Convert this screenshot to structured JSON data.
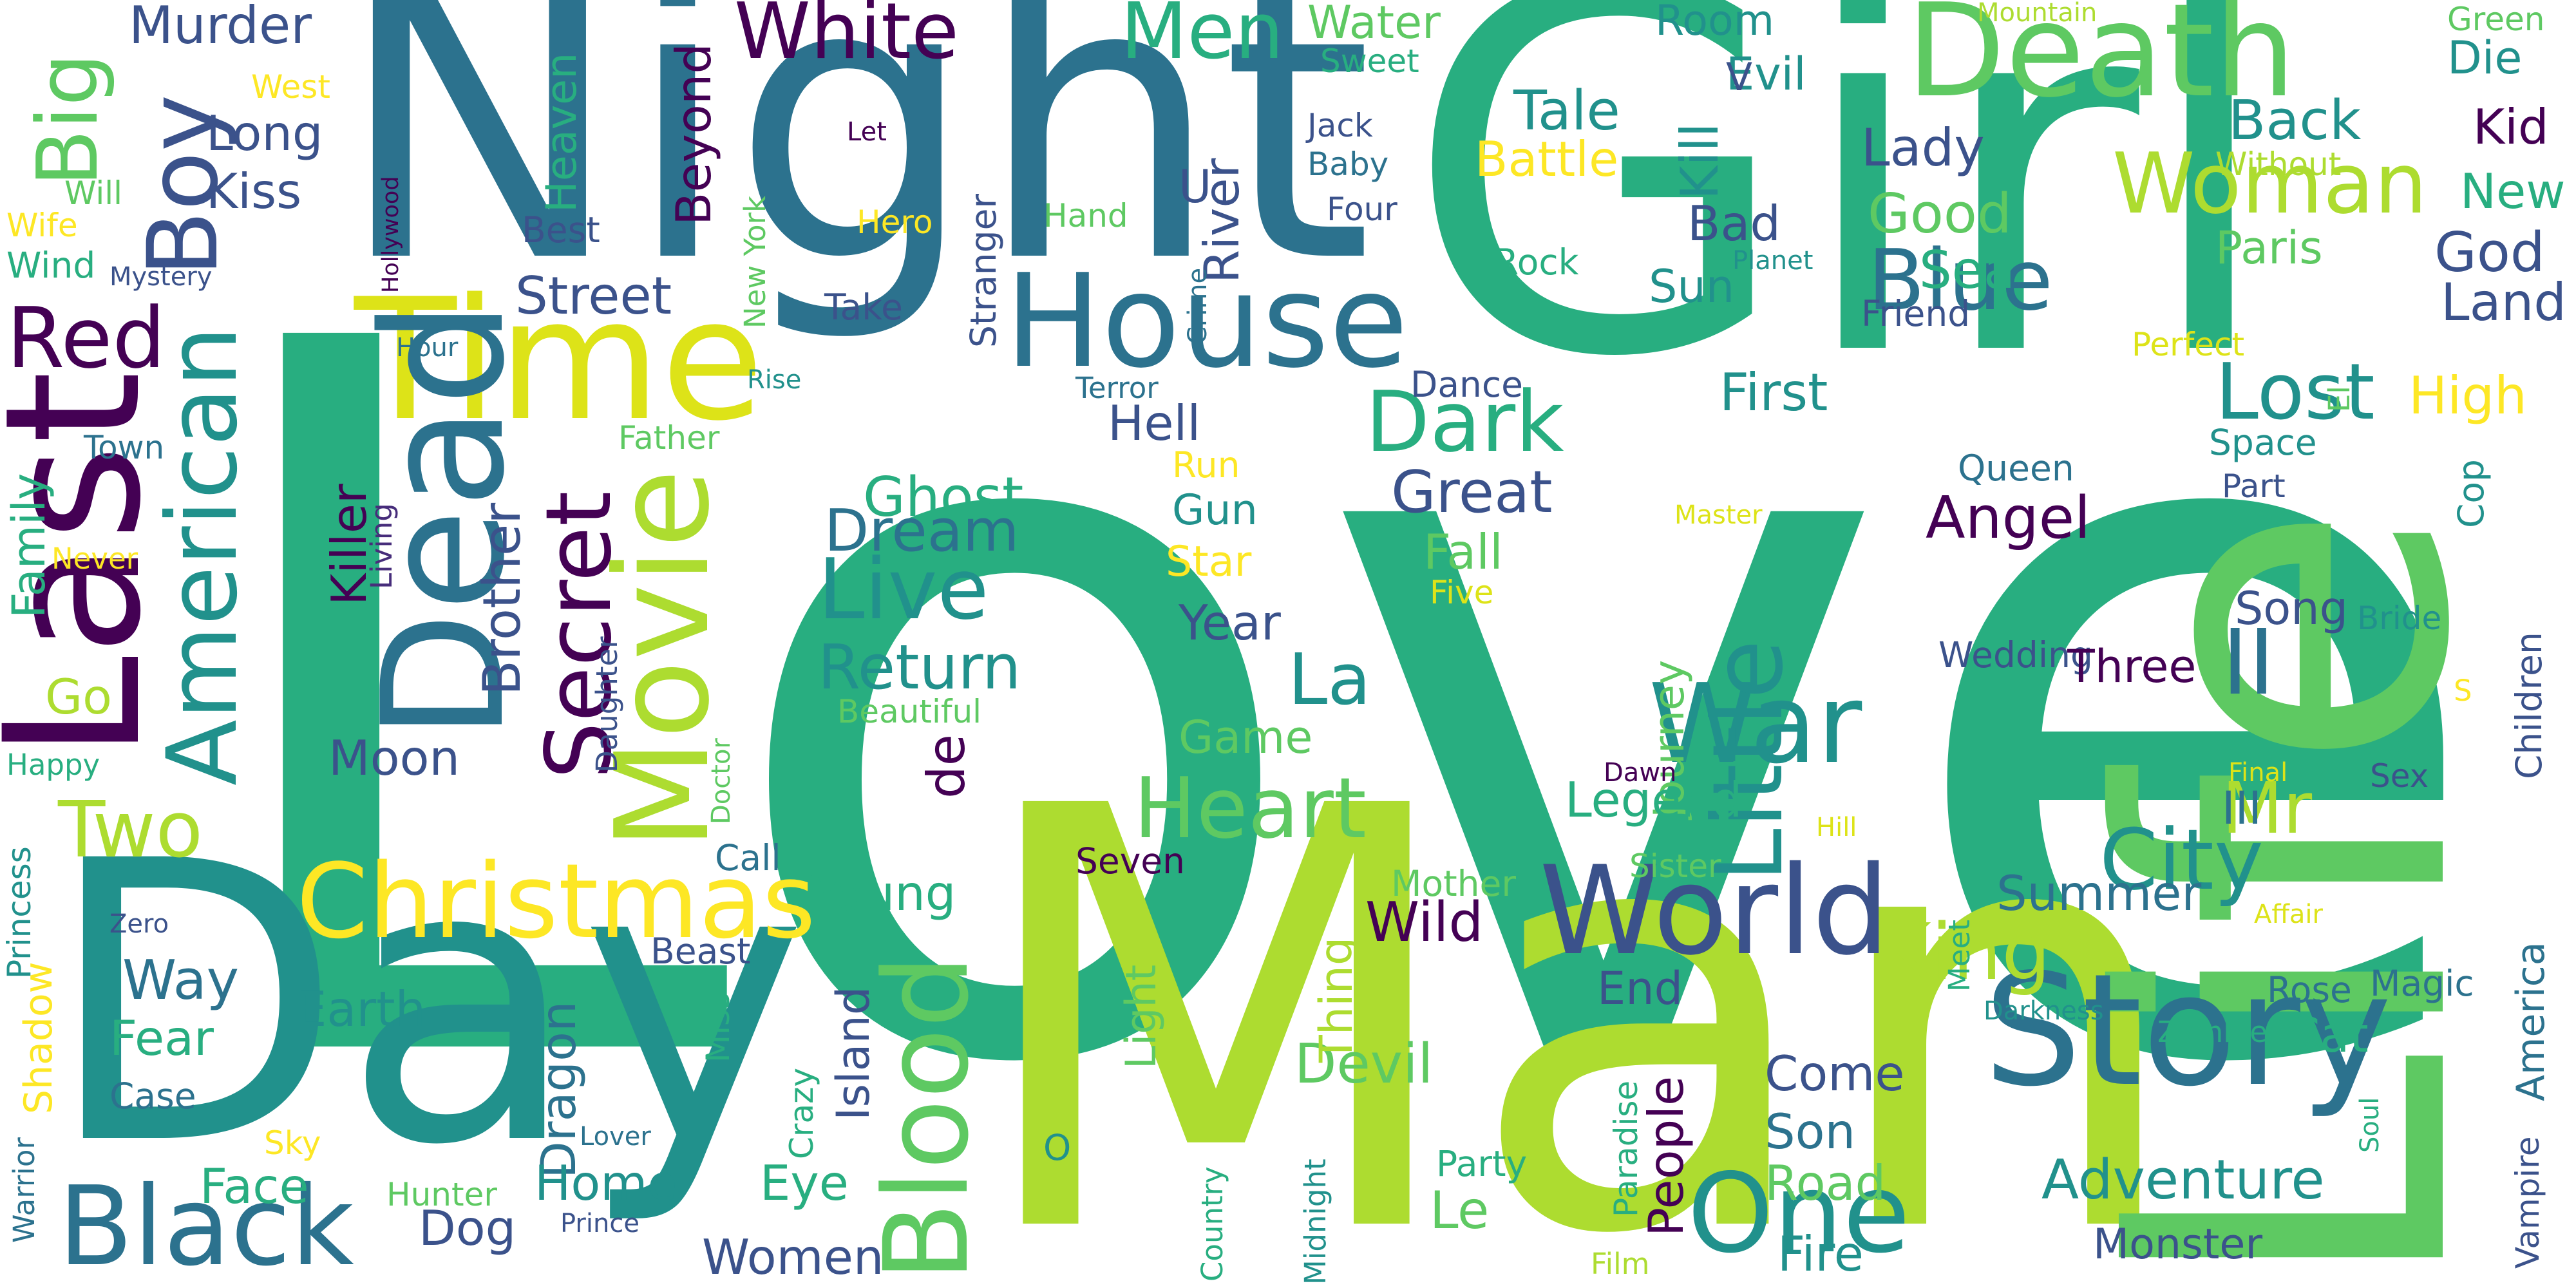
{
  "palette": {
    "background": "#ffffff",
    "purple": "#440154",
    "indigo": "#472d7b",
    "blue": "#3b528b",
    "steel": "#2c728e",
    "teal": "#21918c",
    "green": "#28ae80",
    "mint": "#5ec962",
    "lime": "#addc30",
    "yellow": "#fde725"
  },
  "words": {
    "love": "Love",
    "girl": "Girl",
    "man": "Man",
    "life": "Life",
    "night": "Night",
    "day": "Day",
    "time": "Time",
    "last": "Last",
    "dead": "Dead",
    "death": "Death",
    "house": "House",
    "movie": "Movie",
    "american": "American",
    "christmas": "Christmas",
    "world": "World",
    "story": "Story",
    "war": "War",
    "blood": "Blood",
    "black": "Black",
    "one": "One",
    "little": "Little",
    "woman": "Woman",
    "boy": "Boy",
    "white": "White",
    "men": "Men",
    "big": "Big",
    "red": "Red",
    "two": "Two",
    "secret": "Secret",
    "dark": "Dark",
    "blue": "Blue",
    "lost": "Lost",
    "city": "City",
    "king": "King",
    "heart": "Heart",
    "live": "Live",
    "ii": "II",
    "mr": "Mr",
    "la": "La",
    "angel": "Angel",
    "great": "Great",
    "return": "Return",
    "dream": "Dream",
    "ghost": "Ghost",
    "street": "Street",
    "brother": "Brother",
    "killer": "Killer",
    "murder": "Murder",
    "kiss": "Kiss",
    "long": "Long",
    "heaven": "Heaven",
    "beyond": "Beyond",
    "water": "Water",
    "sweet": "Sweet",
    "room": "Room",
    "evil": "Evil",
    "v": "V",
    "tale": "Tale",
    "battle": "Battle",
    "kill": "Kill",
    "lady": "Lady",
    "good": "Good",
    "bad": "Bad",
    "sea": "Sea",
    "sun": "Sun",
    "back": "Back",
    "without": "Without",
    "paris": "Paris",
    "god": "God",
    "land": "Land",
    "kid": "Kid",
    "new": "New",
    "die": "Die",
    "green": "Green",
    "mountain": "Mountain",
    "jack": "Jack",
    "baby": "Baby",
    "four": "Four",
    "u": "U",
    "river": "River",
    "rock": "Rock",
    "planet": "Planet",
    "friend": "Friend",
    "first": "First",
    "crime": "Crime",
    "stranger": "Stranger",
    "take": "Take",
    "hand": "Hand",
    "hero": "Hero",
    "let": "Let",
    "new_york": "New York",
    "best": "Best",
    "west": "West",
    "will": "Will",
    "wife": "Wife",
    "wind": "Wind",
    "mystery": "Mystery",
    "hollywood": "Hollywood",
    "hour": "Hour",
    "rise": "Rise",
    "town": "Town",
    "father": "Father",
    "family": "Family",
    "never": "Never",
    "living": "Living",
    "go": "Go",
    "moon": "Moon",
    "daughter": "Daughter",
    "happy": "Happy",
    "doctor": "Doctor",
    "terror": "Terror",
    "dance": "Dance",
    "hell": "Hell",
    "run": "Run",
    "gun": "Gun",
    "star": "Star",
    "year": "Year",
    "fall": "Fall",
    "five": "Five",
    "beautiful": "Beautiful",
    "game": "Game",
    "de": "de",
    "journey": "Journey",
    "legend": "Legend",
    "dawn": "Dawn",
    "perfect": "Perfect",
    "high": "High",
    "el": "El",
    "space": "Space",
    "part": "Part",
    "cop": "Cop",
    "queen": "Queen",
    "master": "Master",
    "song": "Song",
    "bride": "Bride",
    "children": "Children",
    "wedding": "Wedding",
    "three": "Three",
    "s": "S",
    "final": "Final",
    "sex": "Sex",
    "iii": "III",
    "hill": "Hill",
    "summer": "Summer",
    "affair": "Affair",
    "america": "America",
    "magic": "Magic",
    "rose": "Rose",
    "darkness": "Darkness",
    "zombie": "Zombie",
    "cat": "Cat",
    "meet": "Meet",
    "sister": "Sister",
    "end": "End",
    "people": "People",
    "come": "Come",
    "son": "Son",
    "road": "Road",
    "adventure": "Adventure",
    "soul": "Soul",
    "vampire": "Vampire",
    "monster": "Monster",
    "fire": "Fire",
    "film": "Film",
    "paradise": "Paradise",
    "party": "Party",
    "le": "Le",
    "devil": "Devil",
    "thing": "Thing",
    "mother": "Mother",
    "wild": "Wild",
    "midnight": "Midnight",
    "country": "Country",
    "o": "O",
    "seven": "Seven",
    "young": "Young",
    "call": "Call",
    "light": "Light",
    "crazy": "Crazy",
    "eye": "Eye",
    "island": "Island",
    "women": "Women",
    "dragon": "Dragon",
    "home": "Home",
    "earth": "Earth",
    "miss": "Miss",
    "beast": "Beast",
    "way": "Way",
    "fear": "Fear",
    "case": "Case",
    "face": "Face",
    "sky": "Sky",
    "lover": "Lover",
    "hunter": "Hunter",
    "dog": "Dog",
    "prince": "Prince",
    "shadow": "Shadow",
    "princess": "Princess",
    "warrior": "Warrior",
    "zero": "Zero"
  }
}
